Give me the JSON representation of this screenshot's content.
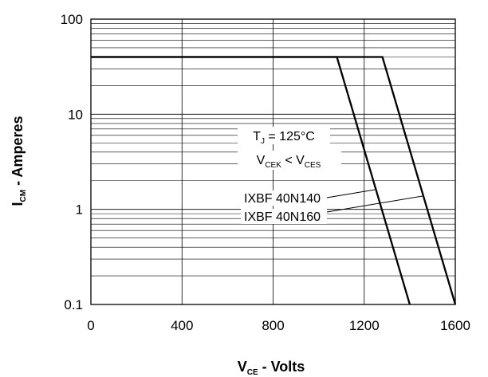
{
  "chart_data": {
    "type": "line",
    "xlabel": {
      "main": "V",
      "sub": "CE",
      "rest": " - Volts"
    },
    "ylabel": {
      "main": "I",
      "sub": "CM",
      "rest": " - Amperes"
    },
    "xlim": [
      0,
      1600
    ],
    "ylim": [
      0.1,
      100
    ],
    "yscale": "log",
    "xticks": [
      0,
      400,
      800,
      1200,
      1600
    ],
    "xtick_labels": [
      "0",
      "400",
      "800",
      "1200",
      "1600"
    ],
    "yticks": [
      0.1,
      1,
      10,
      100
    ],
    "ytick_labels": [
      "0.1",
      "1",
      "10",
      "100"
    ],
    "grid": true,
    "series": [
      {
        "name": "IXBF 40N140",
        "x": [
          0,
          1080,
          1400
        ],
        "y": [
          40,
          40,
          0.1
        ]
      },
      {
        "name": "IXBF 40N160",
        "x": [
          0,
          1280,
          1600
        ],
        "y": [
          40,
          40,
          0.1
        ]
      }
    ],
    "annotations": {
      "tj": {
        "main": "T",
        "sub": "J",
        "rest": " = 125°C"
      },
      "vcek": {
        "main": "V",
        "sub": "CEK",
        "mid": " < V",
        "sub2": "CES"
      }
    }
  }
}
